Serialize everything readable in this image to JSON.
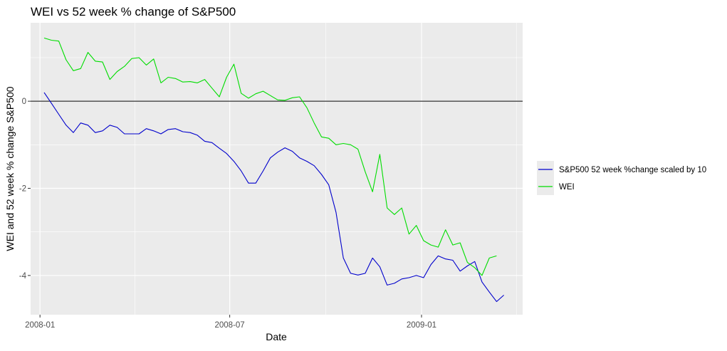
{
  "chart_data": {
    "type": "line",
    "title": "WEI vs 52 week % change of S&P500",
    "xlabel": "Date",
    "ylabel": "WEI and 52 week % change S&P500",
    "x_type": "date",
    "xlim": [
      "2007-12-23",
      "2009-04-08"
    ],
    "ylim": [
      -4.9,
      1.8
    ],
    "x_ticks": [
      {
        "label": "2008-01",
        "date": "2008-01-01"
      },
      {
        "label": "2008-07",
        "date": "2008-07-01"
      },
      {
        "label": "2009-01",
        "date": "2009-01-01"
      }
    ],
    "y_ticks": [
      0,
      -2,
      -4
    ],
    "grid": true,
    "panel_background": "#ebebeb",
    "legend_position": "right",
    "hline": {
      "y": 0,
      "color": "#000000"
    },
    "series": [
      {
        "name": "S&P500 52 week %change scaled by 10",
        "color": "#0000cc",
        "points": [
          [
            "2008-01-05",
            0.2
          ],
          [
            "2008-01-12",
            -0.05
          ],
          [
            "2008-01-19",
            -0.3
          ],
          [
            "2008-01-26",
            -0.55
          ],
          [
            "2008-02-02",
            -0.72
          ],
          [
            "2008-02-09",
            -0.5
          ],
          [
            "2008-02-16",
            -0.55
          ],
          [
            "2008-02-23",
            -0.72
          ],
          [
            "2008-03-01",
            -0.68
          ],
          [
            "2008-03-08",
            -0.55
          ],
          [
            "2008-03-15",
            -0.6
          ],
          [
            "2008-03-22",
            -0.75
          ],
          [
            "2008-03-29",
            -0.75
          ],
          [
            "2008-04-05",
            -0.75
          ],
          [
            "2008-04-12",
            -0.63
          ],
          [
            "2008-04-19",
            -0.68
          ],
          [
            "2008-04-26",
            -0.75
          ],
          [
            "2008-05-03",
            -0.65
          ],
          [
            "2008-05-10",
            -0.63
          ],
          [
            "2008-05-17",
            -0.7
          ],
          [
            "2008-05-24",
            -0.72
          ],
          [
            "2008-05-31",
            -0.78
          ],
          [
            "2008-06-07",
            -0.92
          ],
          [
            "2008-06-14",
            -0.95
          ],
          [
            "2008-06-21",
            -1.08
          ],
          [
            "2008-06-28",
            -1.2
          ],
          [
            "2008-07-05",
            -1.38
          ],
          [
            "2008-07-12",
            -1.6
          ],
          [
            "2008-07-19",
            -1.88
          ],
          [
            "2008-07-26",
            -1.88
          ],
          [
            "2008-08-02",
            -1.6
          ],
          [
            "2008-08-09",
            -1.3
          ],
          [
            "2008-08-16",
            -1.17
          ],
          [
            "2008-08-23",
            -1.07
          ],
          [
            "2008-08-30",
            -1.15
          ],
          [
            "2008-09-06",
            -1.3
          ],
          [
            "2008-09-13",
            -1.38
          ],
          [
            "2008-09-20",
            -1.48
          ],
          [
            "2008-09-27",
            -1.68
          ],
          [
            "2008-10-04",
            -1.92
          ],
          [
            "2008-10-11",
            -2.55
          ],
          [
            "2008-10-18",
            -3.6
          ],
          [
            "2008-10-25",
            -3.95
          ],
          [
            "2008-11-01",
            -3.99
          ],
          [
            "2008-11-08",
            -3.95
          ],
          [
            "2008-11-15",
            -3.6
          ],
          [
            "2008-11-22",
            -3.8
          ],
          [
            "2008-11-29",
            -4.22
          ],
          [
            "2008-12-06",
            -4.18
          ],
          [
            "2008-12-13",
            -4.08
          ],
          [
            "2008-12-20",
            -4.05
          ],
          [
            "2008-12-27",
            -4.0
          ],
          [
            "2009-01-03",
            -4.05
          ],
          [
            "2009-01-10",
            -3.75
          ],
          [
            "2009-01-17",
            -3.55
          ],
          [
            "2009-01-24",
            -3.62
          ],
          [
            "2009-01-31",
            -3.65
          ],
          [
            "2009-02-07",
            -3.9
          ],
          [
            "2009-02-14",
            -3.78
          ],
          [
            "2009-02-21",
            -3.68
          ],
          [
            "2009-02-28",
            -4.15
          ],
          [
            "2009-03-07",
            -4.38
          ],
          [
            "2009-03-14",
            -4.6
          ],
          [
            "2009-03-21",
            -4.45
          ]
        ]
      },
      {
        "name": "WEI",
        "color": "#00dd00",
        "points": [
          [
            "2008-01-05",
            1.45
          ],
          [
            "2008-01-12",
            1.4
          ],
          [
            "2008-01-19",
            1.38
          ],
          [
            "2008-01-26",
            0.95
          ],
          [
            "2008-02-02",
            0.7
          ],
          [
            "2008-02-09",
            0.75
          ],
          [
            "2008-02-16",
            1.12
          ],
          [
            "2008-02-23",
            0.92
          ],
          [
            "2008-03-01",
            0.9
          ],
          [
            "2008-03-08",
            0.5
          ],
          [
            "2008-03-15",
            0.68
          ],
          [
            "2008-03-22",
            0.8
          ],
          [
            "2008-03-29",
            0.98
          ],
          [
            "2008-04-05",
            1.0
          ],
          [
            "2008-04-12",
            0.83
          ],
          [
            "2008-04-19",
            0.97
          ],
          [
            "2008-04-26",
            0.42
          ],
          [
            "2008-05-03",
            0.55
          ],
          [
            "2008-05-10",
            0.52
          ],
          [
            "2008-05-17",
            0.44
          ],
          [
            "2008-05-24",
            0.45
          ],
          [
            "2008-05-31",
            0.42
          ],
          [
            "2008-06-07",
            0.5
          ],
          [
            "2008-06-14",
            0.3
          ],
          [
            "2008-06-21",
            0.1
          ],
          [
            "2008-06-28",
            0.55
          ],
          [
            "2008-07-05",
            0.85
          ],
          [
            "2008-07-12",
            0.18
          ],
          [
            "2008-07-19",
            0.07
          ],
          [
            "2008-07-26",
            0.17
          ],
          [
            "2008-08-02",
            0.23
          ],
          [
            "2008-08-09",
            0.13
          ],
          [
            "2008-08-16",
            0.03
          ],
          [
            "2008-08-23",
            0.02
          ],
          [
            "2008-08-30",
            0.08
          ],
          [
            "2008-09-06",
            0.1
          ],
          [
            "2008-09-13",
            -0.15
          ],
          [
            "2008-09-20",
            -0.5
          ],
          [
            "2008-09-27",
            -0.82
          ],
          [
            "2008-10-04",
            -0.85
          ],
          [
            "2008-10-11",
            -1.0
          ],
          [
            "2008-10-18",
            -0.97
          ],
          [
            "2008-10-25",
            -1.0
          ],
          [
            "2008-11-01",
            -1.1
          ],
          [
            "2008-11-08",
            -1.62
          ],
          [
            "2008-11-15",
            -2.08
          ],
          [
            "2008-11-22",
            -1.22
          ],
          [
            "2008-11-29",
            -2.45
          ],
          [
            "2008-12-06",
            -2.6
          ],
          [
            "2008-12-13",
            -2.45
          ],
          [
            "2008-12-20",
            -3.05
          ],
          [
            "2008-12-27",
            -2.85
          ],
          [
            "2009-01-03",
            -3.2
          ],
          [
            "2009-01-10",
            -3.3
          ],
          [
            "2009-01-17",
            -3.35
          ],
          [
            "2009-01-24",
            -2.95
          ],
          [
            "2009-01-31",
            -3.3
          ],
          [
            "2009-02-07",
            -3.25
          ],
          [
            "2009-02-14",
            -3.7
          ],
          [
            "2009-02-21",
            -3.82
          ],
          [
            "2009-02-28",
            -4.0
          ],
          [
            "2009-03-07",
            -3.6
          ],
          [
            "2009-03-14",
            -3.55
          ]
        ]
      }
    ]
  }
}
